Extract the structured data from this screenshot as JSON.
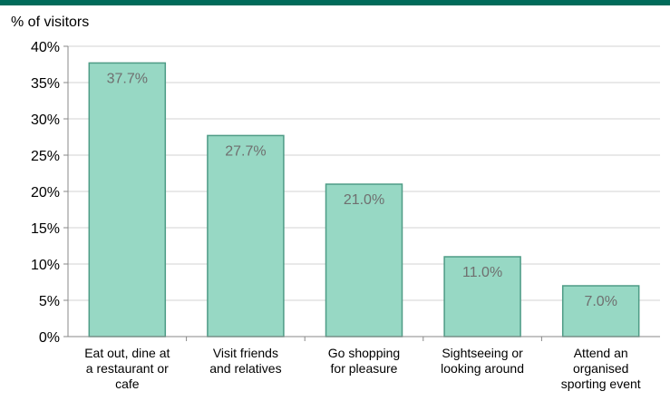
{
  "chart_data": {
    "type": "bar",
    "ylabel": "% of visitors",
    "categories": [
      [
        "Eat out, dine at",
        "a restaurant or",
        "cafe"
      ],
      [
        "Visit friends",
        "and relatives"
      ],
      [
        "Go shopping",
        "for pleasure"
      ],
      [
        "Sightseeing or",
        "looking around"
      ],
      [
        "Attend an",
        "organised",
        "sporting event"
      ]
    ],
    "values": [
      37.7,
      27.7,
      21.0,
      11.0,
      7.0
    ],
    "data_labels": [
      "37.7%",
      "27.7%",
      "21.0%",
      "11.0%",
      "7.0%"
    ],
    "ylim": [
      0,
      40
    ],
    "yticks": [
      0,
      5,
      10,
      15,
      20,
      25,
      30,
      35,
      40
    ],
    "ytick_labels": [
      "0%",
      "5%",
      "10%",
      "15%",
      "20%",
      "25%",
      "30%",
      "35%",
      "40%"
    ],
    "grid": true,
    "colors": {
      "bar_fill": "#97d8c4",
      "bar_stroke": "#4e9c86",
      "data_label": "#6f6f6f",
      "grid": "#d3d3d3",
      "top_rule": "#006b5a"
    }
  }
}
